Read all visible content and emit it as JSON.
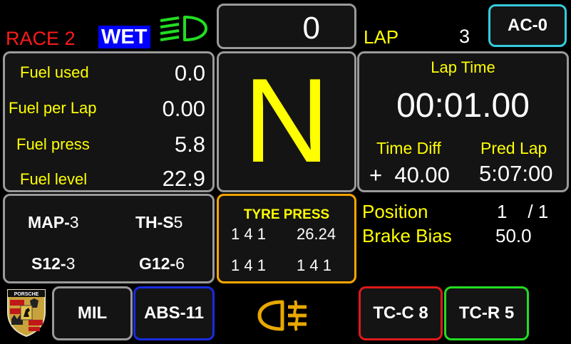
{
  "header": {
    "session": "RACE 2",
    "condition": "WET",
    "speed": "0",
    "lap_label": "LAP",
    "lap_value": "3",
    "ac_button": "AC-0",
    "colors": {
      "session": "#ff1a1a",
      "condition_bg": "#0000ff",
      "headlight_icon": "#22dd22",
      "ac_border": "#33ccdd"
    }
  },
  "fuel": {
    "rows": [
      {
        "label": "Fuel used",
        "value": "0.0"
      },
      {
        "label": "Fuel per Lap",
        "value": "0.00"
      },
      {
        "label": "Fuel press",
        "value": "5.8"
      },
      {
        "label": "Fuel level",
        "value": "22.9"
      }
    ]
  },
  "gear": {
    "value": "N"
  },
  "laptime": {
    "title": "Lap Time",
    "value": "00:01.00",
    "diff_label": "Time Diff",
    "diff_value": "+  40.00",
    "pred_label": "Pred Lap",
    "pred_value": "5:07:00"
  },
  "settings": {
    "items": [
      {
        "name": "MAP-",
        "value": "3"
      },
      {
        "name": "TH-S",
        "value": "5"
      },
      {
        "name": "S12-",
        "value": "3"
      },
      {
        "name": "G12-",
        "value": "6"
      }
    ]
  },
  "tyres": {
    "title": "TYRE PRESS",
    "front_left": "1 4 1",
    "front_right": "26.24",
    "rear_left": "1 4 1",
    "rear_right": "1 4 1",
    "border_color": "#ffa500"
  },
  "race_info": {
    "position_label": "Position",
    "position_value": "1    / 1",
    "bias_label": "Brake Bias",
    "bias_value": "50.0"
  },
  "bottom": {
    "logo_text": "PORSCHE",
    "mil": "MIL",
    "abs": "ABS-11",
    "fog_icon": "rear-fog-light-icon",
    "tcc": "TC-C 8",
    "tcr": "TC-R 5",
    "colors": {
      "abs_border": "#1a2be0",
      "tcc_border": "#e01a1a",
      "tcr_border": "#22dd22",
      "fog_icon": "#e8a800"
    }
  }
}
